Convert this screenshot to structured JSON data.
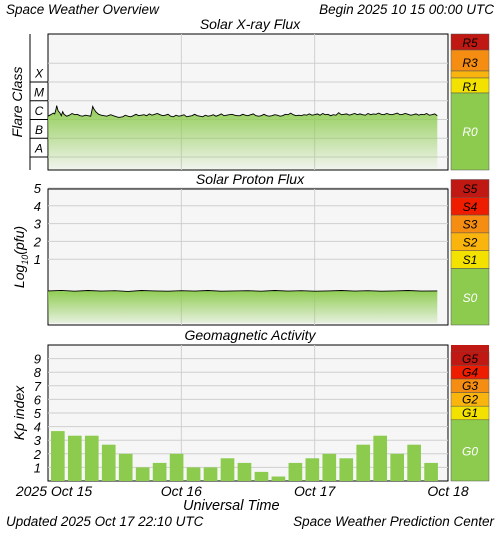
{
  "header": {
    "title": "Space Weather Overview",
    "begin_label": "Begin",
    "begin_date": "2025 10 15 00:00 UTC"
  },
  "footer": {
    "updated_label": "Updated",
    "updated_time": "2025 Oct 17 22:10 UTC",
    "center": "Space Weather Prediction Center"
  },
  "x_axis": {
    "label": "Universal Time",
    "ticks": [
      "2025 Oct 15",
      "Oct 16",
      "Oct 17",
      "Oct 18"
    ]
  },
  "colors": {
    "green": "#8ccb4e",
    "yellow": "#f3e200",
    "orange_light": "#f9b40e",
    "orange": "#f58d12",
    "red": "#ee1d00",
    "dark_red": "#c01812",
    "grid": "#cfcfcf",
    "panel_bg": "#f6f6f6"
  },
  "chart_data": [
    {
      "type": "line",
      "title": "Solar X-ray Flux",
      "ylabel": "Flare Class",
      "yscale": "log",
      "y_classes": [
        "A",
        "B",
        "C",
        "M",
        "X"
      ],
      "scale_labels": [
        "R5",
        "R3",
        "R1",
        "R0"
      ],
      "points": [
        [
          0.0,
          1.5e-06
        ],
        [
          0.02,
          1.8e-06
        ],
        [
          0.04,
          2.2e-06
        ],
        [
          0.05,
          2e-06
        ],
        [
          0.06,
          3.5e-06
        ],
        [
          0.065,
          5.5e-06
        ],
        [
          0.075,
          3e-06
        ],
        [
          0.09,
          2.2e-06
        ],
        [
          0.1,
          1.6e-06
        ],
        [
          0.11,
          2.6e-06
        ],
        [
          0.12,
          1.9e-06
        ],
        [
          0.14,
          1.5e-06
        ],
        [
          0.16,
          1.7e-06
        ],
        [
          0.18,
          2.1e-06
        ],
        [
          0.2,
          1.8e-06
        ],
        [
          0.22,
          1.9e-06
        ],
        [
          0.24,
          1.6e-06
        ],
        [
          0.26,
          1.5e-06
        ],
        [
          0.28,
          1.7e-06
        ],
        [
          0.3,
          1.6e-06
        ],
        [
          0.32,
          1.5e-06
        ],
        [
          0.33,
          3.2e-06
        ],
        [
          0.335,
          5e-06
        ],
        [
          0.345,
          3.6e-06
        ],
        [
          0.36,
          2.5e-06
        ],
        [
          0.38,
          1.9e-06
        ],
        [
          0.4,
          1.7e-06
        ],
        [
          0.42,
          1.6e-06
        ],
        [
          0.44,
          1.5e-06
        ],
        [
          0.47,
          1.8e-06
        ],
        [
          0.5,
          1.5e-06
        ],
        [
          0.53,
          1.3e-06
        ],
        [
          0.56,
          1.4e-06
        ],
        [
          0.58,
          1.7e-06
        ],
        [
          0.6,
          1.5e-06
        ],
        [
          0.62,
          1.4e-06
        ],
        [
          0.64,
          1.6e-06
        ],
        [
          0.66,
          1.9e-06
        ],
        [
          0.68,
          1.6e-06
        ],
        [
          0.7,
          1.7e-06
        ],
        [
          0.72,
          1.8e-06
        ],
        [
          0.74,
          1.6e-06
        ],
        [
          0.76,
          2e-06
        ],
        [
          0.78,
          1.7e-06
        ],
        [
          0.8,
          1.9e-06
        ],
        [
          0.82,
          2.1e-06
        ],
        [
          0.84,
          1.8e-06
        ],
        [
          0.86,
          1.6e-06
        ],
        [
          0.88,
          1.7e-06
        ],
        [
          0.9,
          1.9e-06
        ],
        [
          0.92,
          1.5e-06
        ],
        [
          0.94,
          1.4e-06
        ],
        [
          0.96,
          1.7e-06
        ],
        [
          0.98,
          1.5e-06
        ],
        [
          1.0,
          1.6e-06
        ],
        [
          1.02,
          1.8e-06
        ],
        [
          1.04,
          1.4e-06
        ],
        [
          1.06,
          1.5e-06
        ],
        [
          1.08,
          1.6e-06
        ],
        [
          1.1,
          1.9e-06
        ],
        [
          1.12,
          1.6e-06
        ],
        [
          1.14,
          1.5e-06
        ],
        [
          1.16,
          1.4e-06
        ],
        [
          1.18,
          1.7e-06
        ],
        [
          1.2,
          1.5e-06
        ],
        [
          1.22,
          1.6e-06
        ],
        [
          1.24,
          1.8e-06
        ],
        [
          1.26,
          1.5e-06
        ],
        [
          1.28,
          1.7e-06
        ],
        [
          1.3,
          2e-06
        ],
        [
          1.32,
          1.6e-06
        ],
        [
          1.34,
          1.7e-06
        ],
        [
          1.36,
          1.8e-06
        ],
        [
          1.38,
          1.9e-06
        ],
        [
          1.4,
          1.7e-06
        ],
        [
          1.42,
          1.6e-06
        ],
        [
          1.44,
          1.6e-06
        ],
        [
          1.46,
          1.9e-06
        ],
        [
          1.48,
          1.7e-06
        ],
        [
          1.5,
          1.6e-06
        ],
        [
          1.52,
          1.8e-06
        ],
        [
          1.54,
          2e-06
        ],
        [
          1.56,
          1.6e-06
        ],
        [
          1.58,
          1.5e-06
        ],
        [
          1.6,
          1.6e-06
        ],
        [
          1.62,
          1.9e-06
        ],
        [
          1.64,
          1.6e-06
        ],
        [
          1.66,
          1.5e-06
        ],
        [
          1.68,
          1.6e-06
        ],
        [
          1.7,
          1.8e-06
        ],
        [
          1.72,
          1.7e-06
        ],
        [
          1.74,
          1.5e-06
        ],
        [
          1.76,
          1.6e-06
        ],
        [
          1.78,
          1.9e-06
        ],
        [
          1.8,
          1.8e-06
        ],
        [
          1.82,
          2.2e-06
        ],
        [
          1.84,
          1.8e-06
        ],
        [
          1.86,
          1.6e-06
        ],
        [
          1.88,
          1.7e-06
        ],
        [
          1.9,
          1.6e-06
        ],
        [
          1.92,
          1.8e-06
        ],
        [
          1.94,
          1.7e-06
        ],
        [
          1.96,
          2e-06
        ],
        [
          1.98,
          1.7e-06
        ],
        [
          2.0,
          1.8e-06
        ],
        [
          2.02,
          2e-06
        ],
        [
          2.04,
          1.7e-06
        ],
        [
          2.06,
          2.1e-06
        ],
        [
          2.08,
          1.8e-06
        ],
        [
          2.1,
          1.9e-06
        ],
        [
          2.12,
          1.6e-06
        ],
        [
          2.14,
          1.8e-06
        ],
        [
          2.16,
          1.7e-06
        ],
        [
          2.18,
          2.3e-06
        ],
        [
          2.2,
          1.8e-06
        ],
        [
          2.22,
          1.9e-06
        ],
        [
          2.24,
          2e-06
        ],
        [
          2.26,
          1.7e-06
        ],
        [
          2.28,
          1.9e-06
        ],
        [
          2.3,
          2.1e-06
        ],
        [
          2.32,
          1.8e-06
        ],
        [
          2.34,
          2e-06
        ],
        [
          2.36,
          1.8e-06
        ],
        [
          2.38,
          1.7e-06
        ],
        [
          2.4,
          2.1e-06
        ],
        [
          2.42,
          1.8e-06
        ],
        [
          2.44,
          2e-06
        ],
        [
          2.46,
          1.9e-06
        ],
        [
          2.48,
          2.2e-06
        ],
        [
          2.5,
          1.9e-06
        ],
        [
          2.52,
          1.8e-06
        ],
        [
          2.54,
          2.1e-06
        ],
        [
          2.56,
          1.9e-06
        ],
        [
          2.58,
          1.8e-06
        ],
        [
          2.6,
          2e-06
        ],
        [
          2.62,
          2.2e-06
        ],
        [
          2.64,
          1.8e-06
        ],
        [
          2.66,
          1.9e-06
        ],
        [
          2.68,
          2.1e-06
        ],
        [
          2.7,
          1.9e-06
        ],
        [
          2.72,
          1.7e-06
        ],
        [
          2.74,
          1.8e-06
        ],
        [
          2.76,
          2e-06
        ],
        [
          2.78,
          1.7e-06
        ],
        [
          2.8,
          1.9e-06
        ],
        [
          2.82,
          1.8e-06
        ],
        [
          2.84,
          2.1e-06
        ],
        [
          2.86,
          1.7e-06
        ],
        [
          2.88,
          1.8e-06
        ],
        [
          2.9,
          2e-06
        ],
        [
          2.92,
          1.6e-06
        ]
      ]
    },
    {
      "type": "line",
      "title": "Solar Proton Flux",
      "ylabel": "Log10(pfu)",
      "ylabel_main": "Log",
      "ylabel_sub": "10",
      "ylabel_paren": "(pfu)",
      "yticks": [
        "1",
        "2",
        "3",
        "4",
        "5"
      ],
      "ylim": [
        -1.6,
        5.7
      ],
      "scale_labels": [
        "S5",
        "S4",
        "S3",
        "S2",
        "S1",
        "S0"
      ],
      "points": [
        [
          0.0,
          -0.78
        ],
        [
          0.1,
          -0.75
        ],
        [
          0.2,
          -0.8
        ],
        [
          0.3,
          -0.76
        ],
        [
          0.4,
          -0.79
        ],
        [
          0.5,
          -0.77
        ],
        [
          0.6,
          -0.81
        ],
        [
          0.7,
          -0.76
        ],
        [
          0.8,
          -0.78
        ],
        [
          0.9,
          -0.8
        ],
        [
          1.0,
          -0.77
        ],
        [
          1.1,
          -0.79
        ],
        [
          1.2,
          -0.76
        ],
        [
          1.3,
          -0.8
        ],
        [
          1.4,
          -0.78
        ],
        [
          1.5,
          -0.77
        ],
        [
          1.6,
          -0.8
        ],
        [
          1.7,
          -0.76
        ],
        [
          1.8,
          -0.79
        ],
        [
          1.9,
          -0.77
        ],
        [
          2.0,
          -0.8
        ],
        [
          2.1,
          -0.78
        ],
        [
          2.2,
          -0.76
        ],
        [
          2.3,
          -0.79
        ],
        [
          2.4,
          -0.77
        ],
        [
          2.5,
          -0.8
        ],
        [
          2.6,
          -0.78
        ],
        [
          2.7,
          -0.76
        ],
        [
          2.8,
          -0.79
        ],
        [
          2.92,
          -0.78
        ]
      ]
    },
    {
      "type": "bar",
      "title": "Geomagnetic Activity",
      "ylabel": "Kp index",
      "yticks": [
        "1",
        "2",
        "3",
        "4",
        "5",
        "6",
        "7",
        "8",
        "9"
      ],
      "ylim": [
        0,
        10
      ],
      "scale_labels": [
        "G5",
        "G4",
        "G3",
        "G2",
        "G1",
        "G0"
      ],
      "values": [
        3.67,
        3.33,
        3.33,
        2.67,
        2.0,
        1.0,
        1.33,
        2.0,
        1.0,
        1.0,
        1.67,
        1.33,
        0.67,
        0.33,
        1.33,
        1.67,
        2.0,
        1.67,
        2.67,
        3.33,
        2.0,
        2.67,
        1.33
      ]
    }
  ]
}
